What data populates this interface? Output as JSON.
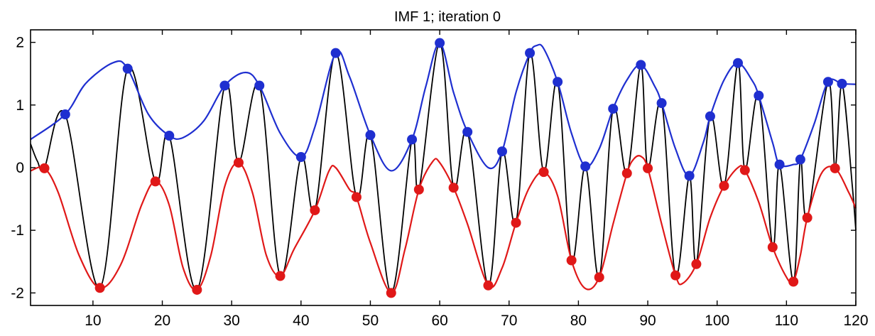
{
  "chart_data": {
    "type": "line",
    "title": "IMF 1;  iteration 0",
    "xlabel": "",
    "ylabel": "",
    "xlim": [
      1,
      120
    ],
    "ylim": [
      -2.2,
      2.2
    ],
    "grid": false,
    "x_ticks": [
      10,
      20,
      30,
      40,
      50,
      60,
      70,
      80,
      90,
      100,
      110,
      120
    ],
    "y_ticks": [
      -2,
      -1,
      0,
      1,
      2
    ],
    "colors": {
      "signal": "#000000",
      "upper": "#1f2fd0",
      "lower": "#e01818"
    },
    "maxima": [
      [
        6,
        0.85
      ],
      [
        15,
        1.58
      ],
      [
        21,
        0.51
      ],
      [
        29,
        1.31
      ],
      [
        34,
        1.31
      ],
      [
        40,
        0.17
      ],
      [
        45,
        1.83
      ],
      [
        50,
        0.52
      ],
      [
        56,
        0.45
      ],
      [
        60,
        1.99
      ],
      [
        64,
        0.57
      ],
      [
        69,
        0.26
      ],
      [
        73,
        1.83
      ],
      [
        77,
        1.37
      ],
      [
        81,
        0.02
      ],
      [
        85,
        0.94
      ],
      [
        89,
        1.64
      ],
      [
        92,
        1.03
      ],
      [
        96,
        -0.13
      ],
      [
        99,
        0.82
      ],
      [
        103,
        1.67
      ],
      [
        106,
        1.15
      ],
      [
        109,
        0.05
      ],
      [
        112,
        0.13
      ],
      [
        116,
        1.37
      ],
      [
        118,
        1.34
      ]
    ],
    "minima": [
      [
        3,
        -0.01
      ],
      [
        11,
        -1.92
      ],
      [
        19,
        -0.22
      ],
      [
        25,
        -1.95
      ],
      [
        31,
        0.08
      ],
      [
        37,
        -1.73
      ],
      [
        42,
        -0.68
      ],
      [
        48,
        -0.47
      ],
      [
        53,
        -2.0
      ],
      [
        57,
        -0.35
      ],
      [
        62,
        -0.32
      ],
      [
        67,
        -1.88
      ],
      [
        71,
        -0.88
      ],
      [
        75,
        -0.07
      ],
      [
        79,
        -1.48
      ],
      [
        83,
        -1.75
      ],
      [
        87,
        -0.09
      ],
      [
        90,
        -0.01
      ],
      [
        94,
        -1.72
      ],
      [
        97,
        -1.54
      ],
      [
        101,
        -0.29
      ],
      [
        104,
        -0.04
      ],
      [
        108,
        -1.27
      ],
      [
        111,
        -1.82
      ],
      [
        113,
        -0.8
      ],
      [
        117,
        -0.01
      ]
    ],
    "series": [
      {
        "values": [
          [
            1,
            0.45
          ],
          [
            6,
            0.85
          ],
          [
            9,
            1.35
          ],
          [
            13,
            1.68
          ],
          [
            15,
            1.58
          ],
          [
            18,
            0.85
          ],
          [
            21,
            0.51
          ],
          [
            23,
            0.48
          ],
          [
            26,
            0.75
          ],
          [
            29,
            1.31
          ],
          [
            32,
            1.52
          ],
          [
            34,
            1.31
          ],
          [
            37,
            0.55
          ],
          [
            40,
            0.17
          ],
          [
            42,
            0.65
          ],
          [
            45,
            1.83
          ],
          [
            47,
            1.45
          ],
          [
            50,
            0.52
          ],
          [
            53,
            -0.05
          ],
          [
            56,
            0.45
          ],
          [
            58,
            1.3
          ],
          [
            60,
            1.99
          ],
          [
            62,
            1.2
          ],
          [
            64,
            0.57
          ],
          [
            67,
            0.0
          ],
          [
            69,
            0.26
          ],
          [
            71,
            1.2
          ],
          [
            73,
            1.83
          ],
          [
            74,
            1.95
          ],
          [
            75,
            1.9
          ],
          [
            77,
            1.37
          ],
          [
            79,
            0.55
          ],
          [
            81,
            0.02
          ],
          [
            83,
            0.3
          ],
          [
            85,
            0.94
          ],
          [
            87,
            1.4
          ],
          [
            89,
            1.64
          ],
          [
            91,
            1.3
          ],
          [
            92,
            1.03
          ],
          [
            94,
            0.3
          ],
          [
            96,
            -0.13
          ],
          [
            98,
            0.4
          ],
          [
            99,
            0.82
          ],
          [
            101,
            1.4
          ],
          [
            103,
            1.67
          ],
          [
            105,
            1.4
          ],
          [
            106,
            1.15
          ],
          [
            108,
            0.4
          ],
          [
            109,
            0.05
          ],
          [
            111,
            0.05
          ],
          [
            112,
            0.13
          ],
          [
            114,
            0.7
          ],
          [
            116,
            1.37
          ],
          [
            118,
            1.34
          ],
          [
            120,
            1.33
          ]
        ]
      },
      {
        "values": [
          [
            1,
            -0.05
          ],
          [
            3,
            -0.01
          ],
          [
            5,
            -0.4
          ],
          [
            8,
            -1.4
          ],
          [
            11,
            -1.92
          ],
          [
            14,
            -1.55
          ],
          [
            17,
            -0.6
          ],
          [
            19,
            -0.22
          ],
          [
            21,
            -0.6
          ],
          [
            23,
            -1.6
          ],
          [
            25,
            -1.95
          ],
          [
            27,
            -1.4
          ],
          [
            29,
            -0.3
          ],
          [
            31,
            0.08
          ],
          [
            33,
            -0.4
          ],
          [
            35,
            -1.4
          ],
          [
            37,
            -1.73
          ],
          [
            39,
            -1.3
          ],
          [
            42,
            -0.68
          ],
          [
            44,
            -0.06
          ],
          [
            45,
            0.0
          ],
          [
            47,
            -0.35
          ],
          [
            48,
            -0.47
          ],
          [
            50,
            -1.2
          ],
          [
            53,
            -2.0
          ],
          [
            55,
            -1.3
          ],
          [
            57,
            -0.35
          ],
          [
            59,
            0.1
          ],
          [
            60,
            0.08
          ],
          [
            62,
            -0.32
          ],
          [
            64,
            -0.9
          ],
          [
            67,
            -1.88
          ],
          [
            69,
            -1.6
          ],
          [
            71,
            -0.88
          ],
          [
            73,
            -0.3
          ],
          [
            75,
            -0.07
          ],
          [
            77,
            -0.45
          ],
          [
            79,
            -1.48
          ],
          [
            81,
            -1.93
          ],
          [
            83,
            -1.75
          ],
          [
            85,
            -0.9
          ],
          [
            87,
            -0.09
          ],
          [
            88,
            0.14
          ],
          [
            89,
            0.18
          ],
          [
            90,
            -0.01
          ],
          [
            92,
            -0.9
          ],
          [
            94,
            -1.72
          ],
          [
            95,
            -1.85
          ],
          [
            97,
            -1.54
          ],
          [
            99,
            -0.8
          ],
          [
            101,
            -0.29
          ],
          [
            103,
            0.0
          ],
          [
            104,
            -0.04
          ],
          [
            106,
            -0.55
          ],
          [
            108,
            -1.27
          ],
          [
            110,
            -1.75
          ],
          [
            111,
            -1.82
          ],
          [
            112,
            -1.4
          ],
          [
            113,
            -0.8
          ],
          [
            115,
            -0.1
          ],
          [
            117,
            -0.01
          ],
          [
            119,
            -0.4
          ],
          [
            120,
            -0.65
          ]
        ]
      }
    ]
  }
}
